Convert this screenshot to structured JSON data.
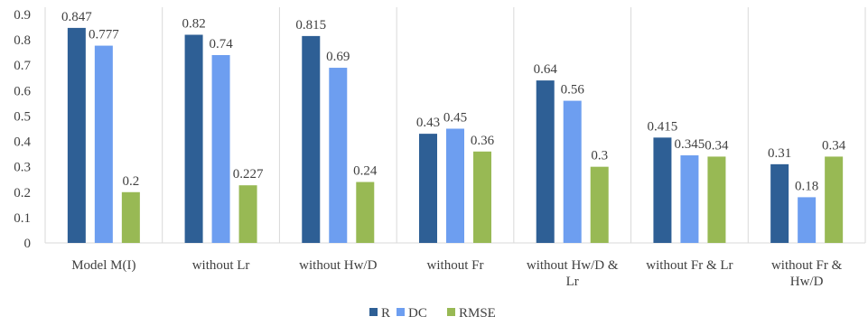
{
  "chart_data": {
    "type": "bar",
    "categories": [
      [
        "Model M(I)"
      ],
      [
        "without Lr"
      ],
      [
        "without Hw/D"
      ],
      [
        "without Fr"
      ],
      [
        "without Hw/D &",
        "Lr"
      ],
      [
        "without Fr & Lr"
      ],
      [
        "without Fr &",
        "Hw/D"
      ]
    ],
    "series": [
      {
        "name": "R",
        "color": "#2e5f95",
        "values": [
          0.847,
          0.82,
          0.815,
          0.43,
          0.64,
          0.415,
          0.31
        ]
      },
      {
        "name": "DC",
        "color": "#6d9ef0",
        "values": [
          0.777,
          0.74,
          0.69,
          0.45,
          0.56,
          0.345,
          0.18
        ]
      },
      {
        "name": "RMSE",
        "color": "#98b954",
        "values": [
          0.2,
          0.227,
          0.24,
          0.36,
          0.3,
          0.34,
          0.34
        ]
      }
    ],
    "ylim": [
      0,
      0.9
    ],
    "yticks": [
      "0",
      "0.1",
      "0.2",
      "0.3",
      "0.4",
      "0.5",
      "0.6",
      "0.7",
      "0.8",
      "0.9"
    ],
    "grid": "vertical category separators",
    "legend": "bottom-center"
  }
}
